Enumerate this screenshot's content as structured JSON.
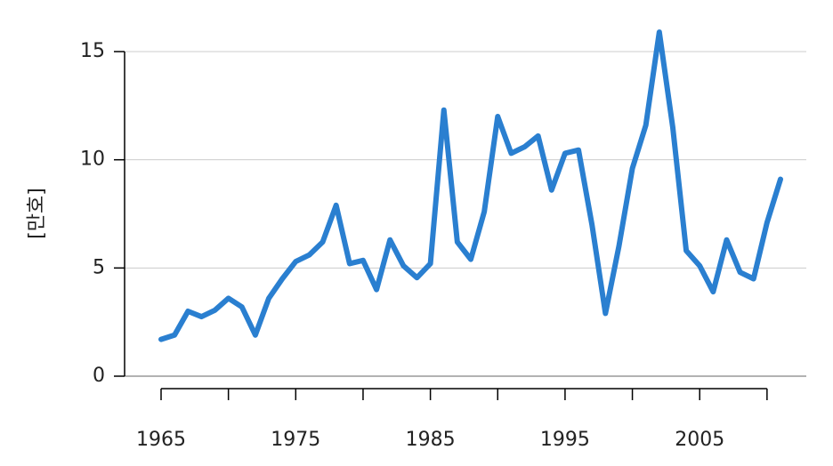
{
  "chart_data": {
    "type": "line",
    "ylabel": "[만호]",
    "x": [
      1965,
      1966,
      1967,
      1968,
      1969,
      1970,
      1971,
      1972,
      1973,
      1974,
      1975,
      1976,
      1977,
      1978,
      1979,
      1980,
      1981,
      1982,
      1983,
      1984,
      1985,
      1986,
      1987,
      1988,
      1989,
      1990,
      1991,
      1992,
      1993,
      1994,
      1995,
      1996,
      1997,
      1998,
      1999,
      2000,
      2001,
      2002,
      2003,
      2004,
      2005,
      2006,
      2007,
      2008,
      2009,
      2010,
      2011
    ],
    "series": [
      {
        "color": "#2a7fd0",
        "values": [
          1.7,
          1.9,
          3.0,
          2.75,
          3.05,
          3.6,
          3.2,
          1.9,
          3.6,
          4.5,
          5.3,
          5.6,
          6.2,
          7.9,
          5.2,
          5.35,
          4.0,
          6.3,
          5.1,
          4.55,
          5.2,
          12.3,
          6.2,
          5.4,
          7.6,
          12.0,
          10.3,
          10.6,
          11.1,
          8.6,
          10.3,
          10.45,
          7.0,
          2.9,
          6.0,
          9.6,
          11.6,
          15.9,
          11.5,
          5.8,
          5.1,
          3.9,
          6.3,
          4.8,
          4.5,
          7.1,
          9.1
        ]
      }
    ],
    "xlim": [
      1965,
      2011
    ],
    "xticks": [
      1965,
      1975,
      1985,
      1995,
      2005
    ],
    "xminorticks": [
      1970,
      1980,
      1990,
      2000,
      2010
    ],
    "ylim": [
      0,
      15
    ],
    "yticks": [
      0,
      5,
      10,
      15
    ],
    "grid": true
  }
}
